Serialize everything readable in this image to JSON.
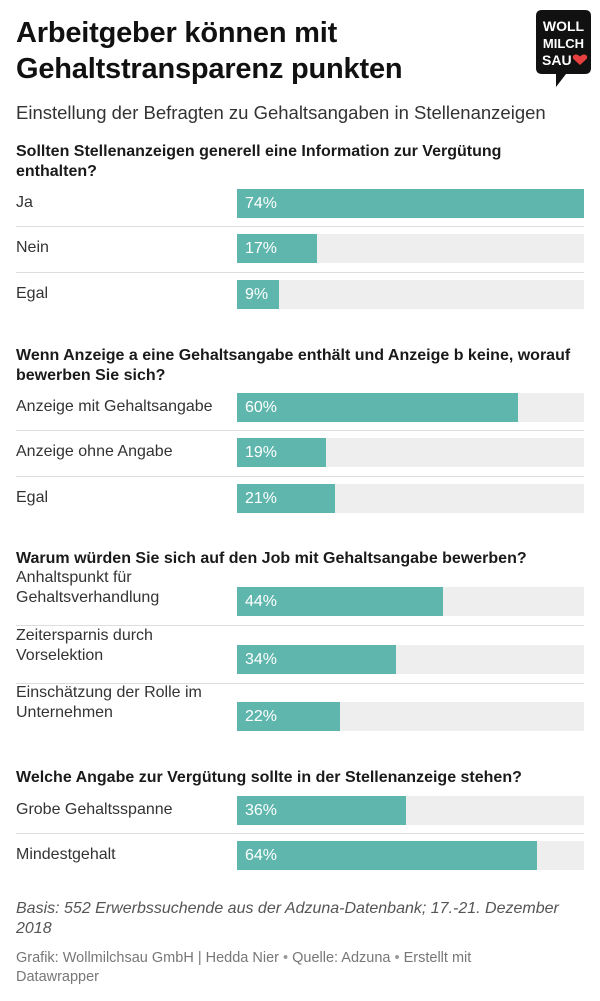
{
  "title": "Arbeitgeber können mit Gehaltstransparenz punkten",
  "subtitle": "Einstellung der Befragten zu Gehaltsangaben in Stellenanzeigen",
  "logo": {
    "lines": [
      "WOLL",
      "MILCH",
      "SAU"
    ],
    "icon": "heart-icon"
  },
  "colors": {
    "bar": "#5fb6ad",
    "track": "#eeeeee",
    "logo_bg": "#111111",
    "heart": "#e8403f"
  },
  "chart_data": [
    {
      "type": "bar",
      "title": "Sollten Stellenanzeigen generell eine Information zur Vergütung enthalten?",
      "categories": [
        "Ja",
        "Nein",
        "Egal"
      ],
      "values": [
        74,
        17,
        9
      ],
      "labels": [
        "74%",
        "17%",
        "9%"
      ],
      "xlim": [
        0,
        74
      ]
    },
    {
      "type": "bar",
      "title": "Wenn Anzeige a eine Gehaltsangabe enthält und Anzeige b keine, worauf bewerben Sie sich?",
      "categories": [
        "Anzeige mit Gehaltsangabe",
        "Anzeige ohne Angabe",
        "Egal"
      ],
      "values": [
        60,
        19,
        21
      ],
      "labels": [
        "60%",
        "19%",
        "21%"
      ],
      "xlim": [
        0,
        74
      ]
    },
    {
      "type": "bar",
      "title": "Warum würden Sie sich auf den Job mit Gehaltsangabe bewerben?",
      "categories": [
        "Anhaltspunkt für Gehaltsverhandlung",
        "Zeitersparnis durch Vorselektion",
        "Einschätzung der Rolle im Unternehmen"
      ],
      "values": [
        44,
        34,
        22
      ],
      "labels": [
        "44%",
        "34%",
        "22%"
      ],
      "xlim": [
        0,
        74
      ]
    },
    {
      "type": "bar",
      "title": "Welche Angabe zur Vergütung sollte in der Stellenanzeige stehen?",
      "categories": [
        "Grobe Gehaltsspanne",
        "Mindestgehalt"
      ],
      "values": [
        36,
        64
      ],
      "labels": [
        "36%",
        "64%"
      ],
      "xlim": [
        0,
        74
      ]
    }
  ],
  "notes": "Basis: 552 Erwerbssuchende aus der Adzuna-Datenbank; 17.-21. Dezember 2018",
  "footer": {
    "grafik": "Grafik: Wollmilchsau GmbH | Hedda Nier",
    "sep1": "•",
    "quelle": "Quelle: Adzuna",
    "sep2": "•",
    "tool": "Erstellt mit Datawrapper"
  }
}
